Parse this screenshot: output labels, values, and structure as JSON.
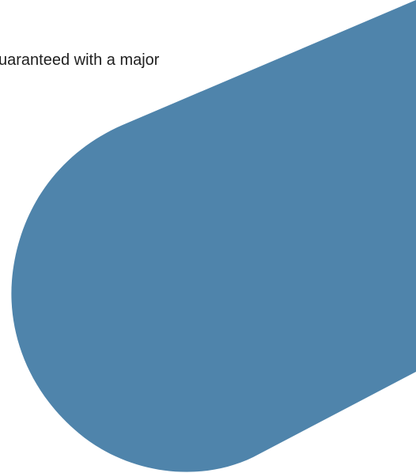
{
  "text": {
    "fragment": "uaranteed with a major"
  },
  "colors": {
    "background": "#ffffff",
    "shape": "#4f84ab",
    "text": "#1f1f1f"
  }
}
